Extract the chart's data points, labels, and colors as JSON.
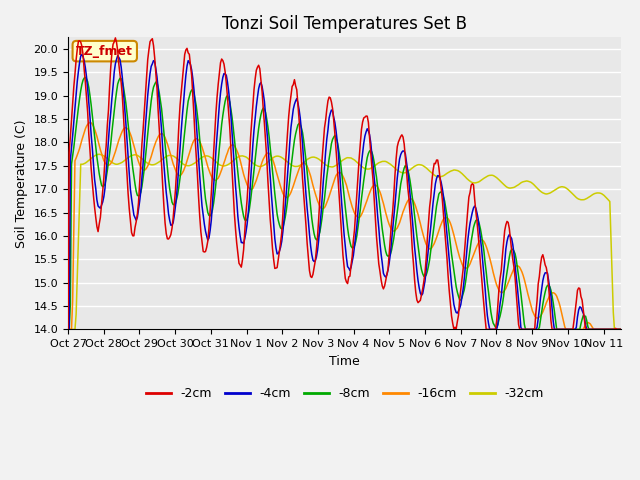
{
  "title": "Tonzi Soil Temperatures Set B",
  "xlabel": "Time",
  "ylabel": "Soil Temperature (C)",
  "ylim": [
    14.0,
    20.25
  ],
  "yticks": [
    14.0,
    14.5,
    15.0,
    15.5,
    16.0,
    16.5,
    17.0,
    17.5,
    18.0,
    18.5,
    19.0,
    19.5,
    20.0
  ],
  "xtick_labels": [
    "Oct 27",
    "Oct 28",
    "Oct 29",
    "Oct 30",
    "Oct 31",
    "Nov 1",
    "Nov 2",
    "Nov 3",
    "Nov 4",
    "Nov 5",
    "Nov 6",
    "Nov 7",
    "Nov 8",
    "Nov 9",
    "Nov 10",
    "Nov 11"
  ],
  "annotation_text": "TZ_fmet",
  "annotation_color": "#cc0000",
  "annotation_bg": "#ffffcc",
  "annotation_border": "#cc8800",
  "colors": {
    "-2cm": "#dd0000",
    "-4cm": "#0000cc",
    "-8cm": "#00aa00",
    "-16cm": "#ff8800",
    "-32cm": "#cccc00"
  },
  "legend_labels": [
    "-2cm",
    "-4cm",
    "-8cm",
    "-16cm",
    "-32cm"
  ],
  "bg_color": "#e8e8e8",
  "grid_color": "#ffffff",
  "title_fontsize": 12,
  "label_fontsize": 9,
  "tick_fontsize": 8,
  "n_points": 480
}
